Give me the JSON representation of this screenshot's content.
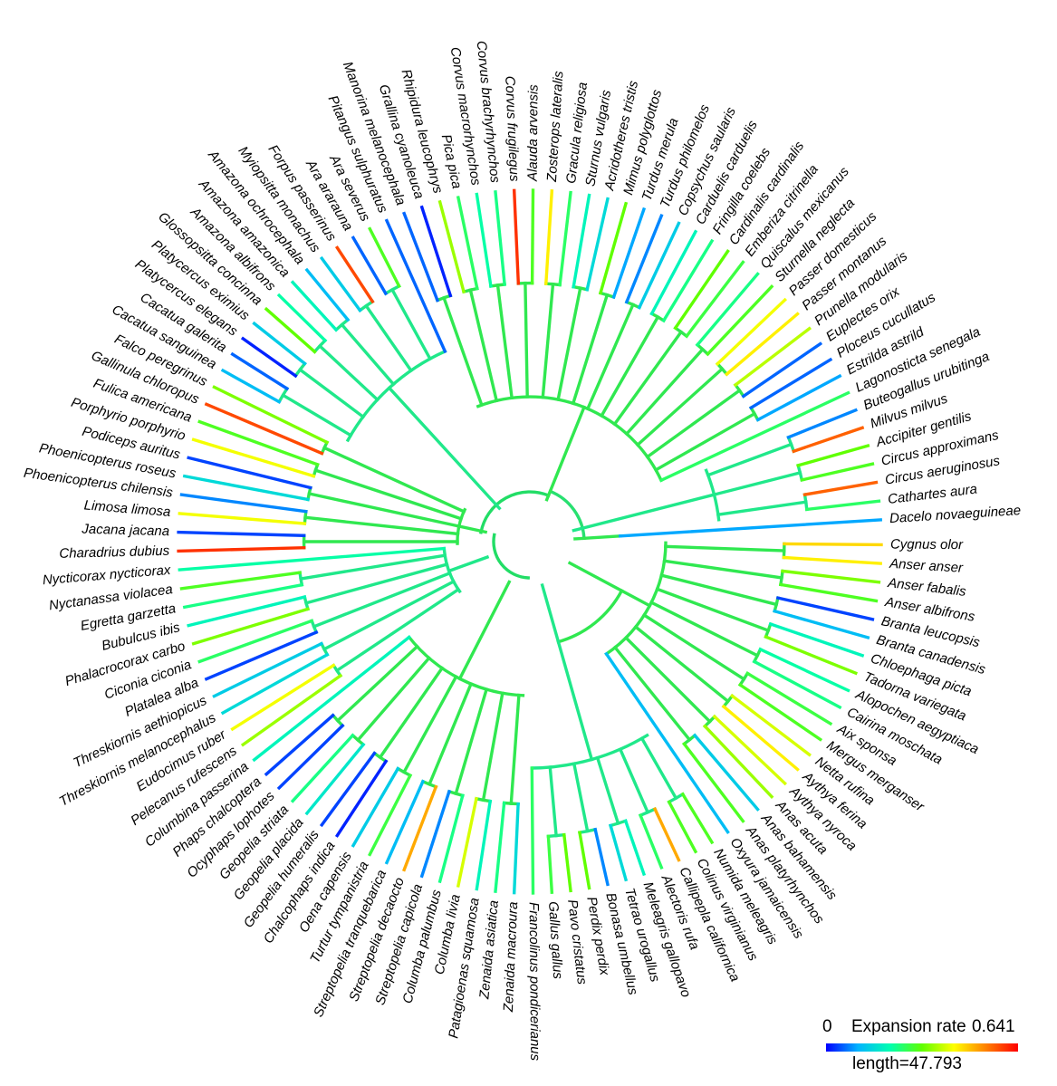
{
  "legend": {
    "min_label": "0",
    "title": "Expansion rate",
    "max_label": "0.641",
    "length_label": "length=47.793",
    "colors": [
      "#0000ff",
      "#00b4ff",
      "#00ffb0",
      "#60ff00",
      "#ffff00",
      "#ff8000",
      "#ff0000"
    ]
  },
  "species": [
    {
      "name": "Cygnus olor",
      "rate": 0.46
    },
    {
      "name": "Anser anser",
      "rate": 0.44
    },
    {
      "name": "Anser fabalis",
      "rate": 0.34
    },
    {
      "name": "Anser albifrons",
      "rate": 0.3
    },
    {
      "name": "Branta leucopsis",
      "rate": 0.04
    },
    {
      "name": "Branta canadensis",
      "rate": 0.12
    },
    {
      "name": "Chloephaga picta",
      "rate": 0.2
    },
    {
      "name": "Tadorna variegata",
      "rate": 0.34
    },
    {
      "name": "Alopochen aegyptiaca",
      "rate": 0.22
    },
    {
      "name": "Cairina moschata",
      "rate": 0.24
    },
    {
      "name": "Aix sponsa",
      "rate": 0.28
    },
    {
      "name": "Mergus merganser",
      "rate": 0.3
    },
    {
      "name": "Netta rufina",
      "rate": 0.4
    },
    {
      "name": "Aythya ferina",
      "rate": 0.44
    },
    {
      "name": "Aythya nyroca",
      "rate": 0.4
    },
    {
      "name": "Anas acuta",
      "rate": 0.36
    },
    {
      "name": "Anas bahamensis",
      "rate": 0.14
    },
    {
      "name": "Anas platyrhynchos",
      "rate": 0.3
    },
    {
      "name": "Oxyura jamaicensis",
      "rate": 0.12
    },
    {
      "name": "Numida meleagris",
      "rate": 0.3
    },
    {
      "name": "Colinus virginianus",
      "rate": 0.3
    },
    {
      "name": "Callipepla californica",
      "rate": 0.5
    },
    {
      "name": "Alectoris rufa",
      "rate": 0.26
    },
    {
      "name": "Meleagris gallopavo",
      "rate": 0.2
    },
    {
      "name": "Tetrao urogallus",
      "rate": 0.16
    },
    {
      "name": "Bonasa umbellus",
      "rate": 0.08
    },
    {
      "name": "Perdix perdix",
      "rate": 0.32
    },
    {
      "name": "Pavo cristatus",
      "rate": 0.32
    },
    {
      "name": "Gallus gallus",
      "rate": 0.28
    },
    {
      "name": "Francolinus pondicerianus",
      "rate": 0.26
    },
    {
      "name": "Zenaida macroura",
      "rate": 0.16
    },
    {
      "name": "Zenaida asiatica",
      "rate": 0.24
    },
    {
      "name": "Patagioenas squamosa",
      "rate": 0.2
    },
    {
      "name": "Columba livia",
      "rate": 0.4
    },
    {
      "name": "Columba palumbus",
      "rate": 0.24
    },
    {
      "name": "Streptopelia capicola",
      "rate": 0.08
    },
    {
      "name": "Streptopelia decaocto",
      "rate": 0.5
    },
    {
      "name": "Streptopelia tranquebarica",
      "rate": 0.12
    },
    {
      "name": "Turtur tympanistria",
      "rate": 0.28
    },
    {
      "name": "Oena capensis",
      "rate": 0.14
    },
    {
      "name": "Chalcophaps indica",
      "rate": 0.02
    },
    {
      "name": "Geopelia humeralis",
      "rate": 0.04
    },
    {
      "name": "Geopelia placida",
      "rate": 0.18
    },
    {
      "name": "Geopelia striata",
      "rate": 0.24
    },
    {
      "name": "Ocyphaps lophotes",
      "rate": 0.04
    },
    {
      "name": "Phaps chalcoptera",
      "rate": 0.04
    },
    {
      "name": "Columbina passerina",
      "rate": 0.2
    },
    {
      "name": "Pelecanus rufescens",
      "rate": 0.36
    },
    {
      "name": "Eudocimus ruber",
      "rate": 0.42
    },
    {
      "name": "Threskiornis melanocephalus",
      "rate": 0.16
    },
    {
      "name": "Threskiornis aethiopicus",
      "rate": 0.14
    },
    {
      "name": "Platalea alba",
      "rate": 0.04
    },
    {
      "name": "Ciconia ciconia",
      "rate": 0.26
    },
    {
      "name": "Phalacrocorax carbo",
      "rate": 0.34
    },
    {
      "name": "Bubulcus ibis",
      "rate": 0.2
    },
    {
      "name": "Egretta garzetta",
      "rate": 0.24
    },
    {
      "name": "Nyctanassa violacea",
      "rate": 0.3
    },
    {
      "name": "Nycticorax nycticorax",
      "rate": 0.22
    },
    {
      "name": "Charadrius dubius",
      "rate": 0.6
    },
    {
      "name": "Jacana jacana",
      "rate": 0.04
    },
    {
      "name": "Limosa limosa",
      "rate": 0.42
    },
    {
      "name": "Phoenicopterus chilensis",
      "rate": 0.08
    },
    {
      "name": "Phoenicopterus roseus",
      "rate": 0.16
    },
    {
      "name": "Podiceps auritus",
      "rate": 0.04
    },
    {
      "name": "Porphyrio porphyrio",
      "rate": 0.42
    },
    {
      "name": "Fulica americana",
      "rate": 0.3
    },
    {
      "name": "Gallinula chloropus",
      "rate": 0.58
    },
    {
      "name": "Falco peregrinus",
      "rate": 0.34
    },
    {
      "name": "Cacatua sanguinea",
      "rate": 0.12
    },
    {
      "name": "Cacatua galerita",
      "rate": 0.06
    },
    {
      "name": "Platycercus elegans",
      "rate": 0.02
    },
    {
      "name": "Platycercus eximius",
      "rate": 0.14
    },
    {
      "name": "Glossopsitta concinna",
      "rate": 0.32
    },
    {
      "name": "Amazona albifrons",
      "rate": 0.22
    },
    {
      "name": "Amazona amazonica",
      "rate": 0.2
    },
    {
      "name": "Amazona ochrocephala",
      "rate": 0.12
    },
    {
      "name": "Myiopsitta monachus",
      "rate": 0.14
    },
    {
      "name": "Forpus passerinus",
      "rate": 0.58
    },
    {
      "name": "Ara ararauna",
      "rate": 0.06
    },
    {
      "name": "Ara severus",
      "rate": 0.3
    },
    {
      "name": "Pitangus sulphuratus",
      "rate": 0.06
    },
    {
      "name": "Manorina melanocephala",
      "rate": 0.06
    },
    {
      "name": "Grallina cyanoleuca",
      "rate": 0.02
    },
    {
      "name": "Rhipidura leucophrys",
      "rate": 0.36
    },
    {
      "name": "Pica pica",
      "rate": 0.26
    },
    {
      "name": "Corvus macrorhynchos",
      "rate": 0.22
    },
    {
      "name": "Corvus brachyrhynchos",
      "rate": 0.24
    },
    {
      "name": "Corvus frugilegus",
      "rate": 0.6
    },
    {
      "name": "Alauda arvensis",
      "rate": 0.3
    },
    {
      "name": "Zosterops lateralis",
      "rate": 0.44
    },
    {
      "name": "Gracula religiosa",
      "rate": 0.26
    },
    {
      "name": "Sturnus vulgaris",
      "rate": 0.2
    },
    {
      "name": "Acridotheres tristis",
      "rate": 0.16
    },
    {
      "name": "Mimus polyglottos",
      "rate": 0.32
    },
    {
      "name": "Turdus merula",
      "rate": 0.1
    },
    {
      "name": "Turdus philomelos",
      "rate": 0.08
    },
    {
      "name": "Copsychus saularis",
      "rate": 0.14
    },
    {
      "name": "Carduelis carduelis",
      "rate": 0.2
    },
    {
      "name": "Fringilla coelebs",
      "rate": 0.24
    },
    {
      "name": "Cardinalis cardinalis",
      "rate": 0.32
    },
    {
      "name": "Emberiza citrinella",
      "rate": 0.28
    },
    {
      "name": "Quiscalus mexicanus",
      "rate": 0.24
    },
    {
      "name": "Sturnella neglecta",
      "rate": 0.3
    },
    {
      "name": "Passer domesticus",
      "rate": 0.42
    },
    {
      "name": "Passer montanus",
      "rate": 0.44
    },
    {
      "name": "Prunella modularis",
      "rate": 0.38
    },
    {
      "name": "Euplectes orix",
      "rate": 0.06
    },
    {
      "name": "Ploceus cucullatus",
      "rate": 0.06
    },
    {
      "name": "Estrilda astrild",
      "rate": 0.1
    },
    {
      "name": "Lagonosticta senegala",
      "rate": 0.26
    },
    {
      "name": "Buteogallus urubitinga",
      "rate": 0.08
    },
    {
      "name": "Milvus milvus",
      "rate": 0.56
    },
    {
      "name": "Accipiter gentilis",
      "rate": 0.32
    },
    {
      "name": "Circus approximans",
      "rate": 0.3
    },
    {
      "name": "Circus aeruginosus",
      "rate": 0.56
    },
    {
      "name": "Cathartes aura",
      "rate": 0.26
    },
    {
      "name": "Dacelo novaeguineae",
      "rate": 0.1
    }
  ]
}
